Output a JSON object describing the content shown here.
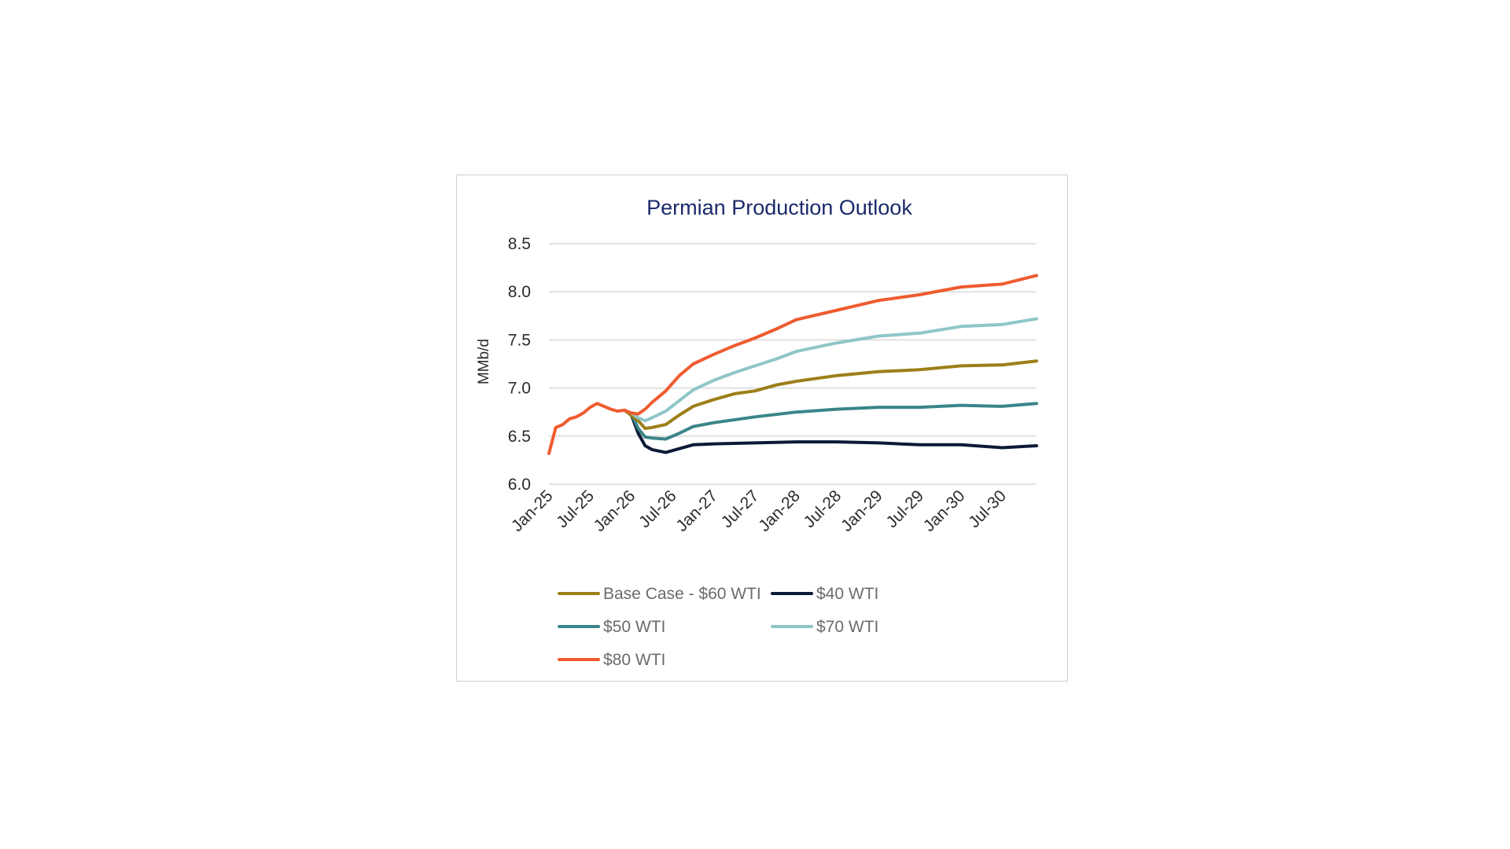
{
  "chart_data": {
    "type": "line",
    "title": "Permian Production Outlook",
    "xlabel": "",
    "ylabel": "MMb/d",
    "ylim": [
      6.0,
      8.5
    ],
    "yticks": [
      "6.0",
      "6.5",
      "7.0",
      "7.5",
      "8.0",
      "8.5"
    ],
    "xticks": [
      "Jan-25",
      "Jul-25",
      "Jan-26",
      "Jul-26",
      "Jan-27",
      "Jul-27",
      "Jan-28",
      "Jul-28",
      "Jan-29",
      "Jul-29",
      "Jan-30",
      "Jul-30"
    ],
    "x_start": "Jan-25",
    "x_end": "Dec-30",
    "grid": "horizontal",
    "legend_position": "bottom",
    "history": {
      "name": "",
      "color": "#ef5b2f",
      "points": [
        {
          "x": "Jan-25",
          "y": 6.32
        },
        {
          "x": "Feb-25",
          "y": 6.59
        },
        {
          "x": "Mar-25",
          "y": 6.62
        },
        {
          "x": "Apr-25",
          "y": 6.68
        },
        {
          "x": "May-25",
          "y": 6.7
        },
        {
          "x": "Jun-25",
          "y": 6.74
        },
        {
          "x": "Jul-25",
          "y": 6.8
        },
        {
          "x": "Aug-25",
          "y": 6.84
        },
        {
          "x": "Sep-25",
          "y": 6.81
        },
        {
          "x": "Oct-25",
          "y": 6.78
        },
        {
          "x": "Nov-25",
          "y": 6.76
        },
        {
          "x": "Dec-25",
          "y": 6.77
        }
      ]
    },
    "series": [
      {
        "name": "Base Case - $60 WTI",
        "color": "#9c7f18",
        "points": [
          {
            "x": "Dec-25",
            "y": 6.77
          },
          {
            "x": "Feb-26",
            "y": 6.66
          },
          {
            "x": "Mar-26",
            "y": 6.58
          },
          {
            "x": "Apr-26",
            "y": 6.59
          },
          {
            "x": "Jun-26",
            "y": 6.62
          },
          {
            "x": "Aug-26",
            "y": 6.72
          },
          {
            "x": "Oct-26",
            "y": 6.81
          },
          {
            "x": "Jan-27",
            "y": 6.88
          },
          {
            "x": "Apr-27",
            "y": 6.94
          },
          {
            "x": "Jul-27",
            "y": 6.97
          },
          {
            "x": "Oct-27",
            "y": 7.03
          },
          {
            "x": "Jan-28",
            "y": 7.07
          },
          {
            "x": "Jul-28",
            "y": 7.13
          },
          {
            "x": "Jan-29",
            "y": 7.17
          },
          {
            "x": "Jul-29",
            "y": 7.19
          },
          {
            "x": "Jan-30",
            "y": 7.23
          },
          {
            "x": "Jul-30",
            "y": 7.24
          },
          {
            "x": "Dec-30",
            "y": 7.28
          }
        ]
      },
      {
        "name": "$40 WTI",
        "color": "#0c1a36",
        "points": [
          {
            "x": "Dec-25",
            "y": 6.77
          },
          {
            "x": "Jan-26",
            "y": 6.72
          },
          {
            "x": "Feb-26",
            "y": 6.53
          },
          {
            "x": "Mar-26",
            "y": 6.4
          },
          {
            "x": "Apr-26",
            "y": 6.36
          },
          {
            "x": "Jun-26",
            "y": 6.33
          },
          {
            "x": "Aug-26",
            "y": 6.37
          },
          {
            "x": "Oct-26",
            "y": 6.41
          },
          {
            "x": "Jan-27",
            "y": 6.42
          },
          {
            "x": "Jul-27",
            "y": 6.43
          },
          {
            "x": "Jan-28",
            "y": 6.44
          },
          {
            "x": "Jul-28",
            "y": 6.44
          },
          {
            "x": "Jan-29",
            "y": 6.43
          },
          {
            "x": "Jul-29",
            "y": 6.41
          },
          {
            "x": "Jan-30",
            "y": 6.41
          },
          {
            "x": "Jul-30",
            "y": 6.38
          },
          {
            "x": "Dec-30",
            "y": 6.4
          }
        ]
      },
      {
        "name": "$50 WTI",
        "color": "#3a8589",
        "points": [
          {
            "x": "Dec-25",
            "y": 6.77
          },
          {
            "x": "Jan-26",
            "y": 6.73
          },
          {
            "x": "Feb-26",
            "y": 6.58
          },
          {
            "x": "Mar-26",
            "y": 6.49
          },
          {
            "x": "Apr-26",
            "y": 6.48
          },
          {
            "x": "Jun-26",
            "y": 6.47
          },
          {
            "x": "Aug-26",
            "y": 6.53
          },
          {
            "x": "Oct-26",
            "y": 6.6
          },
          {
            "x": "Jan-27",
            "y": 6.64
          },
          {
            "x": "Jul-27",
            "y": 6.7
          },
          {
            "x": "Jan-28",
            "y": 6.75
          },
          {
            "x": "Jul-28",
            "y": 6.78
          },
          {
            "x": "Jan-29",
            "y": 6.8
          },
          {
            "x": "Jul-29",
            "y": 6.8
          },
          {
            "x": "Jan-30",
            "y": 6.82
          },
          {
            "x": "Jul-30",
            "y": 6.81
          },
          {
            "x": "Dec-30",
            "y": 6.84
          }
        ]
      },
      {
        "name": "$70 WTI",
        "color": "#8fc6c7",
        "points": [
          {
            "x": "Dec-25",
            "y": 6.77
          },
          {
            "x": "Jan-26",
            "y": 6.74
          },
          {
            "x": "Feb-26",
            "y": 6.69
          },
          {
            "x": "Mar-26",
            "y": 6.66
          },
          {
            "x": "Apr-26",
            "y": 6.69
          },
          {
            "x": "Jun-26",
            "y": 6.76
          },
          {
            "x": "Aug-26",
            "y": 6.87
          },
          {
            "x": "Oct-26",
            "y": 6.98
          },
          {
            "x": "Jan-27",
            "y": 7.08
          },
          {
            "x": "Apr-27",
            "y": 7.16
          },
          {
            "x": "Jul-27",
            "y": 7.23
          },
          {
            "x": "Oct-27",
            "y": 7.3
          },
          {
            "x": "Jan-28",
            "y": 7.38
          },
          {
            "x": "Jul-28",
            "y": 7.47
          },
          {
            "x": "Jan-29",
            "y": 7.54
          },
          {
            "x": "Jul-29",
            "y": 7.57
          },
          {
            "x": "Jan-30",
            "y": 7.64
          },
          {
            "x": "Jul-30",
            "y": 7.66
          },
          {
            "x": "Dec-30",
            "y": 7.72
          }
        ]
      },
      {
        "name": "$80 WTI",
        "color": "#ef5b2f",
        "points": [
          {
            "x": "Dec-25",
            "y": 6.77
          },
          {
            "x": "Jan-26",
            "y": 6.74
          },
          {
            "x": "Feb-26",
            "y": 6.73
          },
          {
            "x": "Mar-26",
            "y": 6.78
          },
          {
            "x": "Apr-26",
            "y": 6.85
          },
          {
            "x": "Jun-26",
            "y": 6.97
          },
          {
            "x": "Aug-26",
            "y": 7.13
          },
          {
            "x": "Oct-26",
            "y": 7.25
          },
          {
            "x": "Jan-27",
            "y": 7.35
          },
          {
            "x": "Apr-27",
            "y": 7.44
          },
          {
            "x": "Jul-27",
            "y": 7.52
          },
          {
            "x": "Oct-27",
            "y": 7.61
          },
          {
            "x": "Jan-28",
            "y": 7.71
          },
          {
            "x": "Jul-28",
            "y": 7.81
          },
          {
            "x": "Jan-29",
            "y": 7.91
          },
          {
            "x": "Jul-29",
            "y": 7.97
          },
          {
            "x": "Jan-30",
            "y": 8.05
          },
          {
            "x": "Jul-30",
            "y": 8.08
          },
          {
            "x": "Dec-30",
            "y": 8.17
          }
        ]
      }
    ]
  }
}
